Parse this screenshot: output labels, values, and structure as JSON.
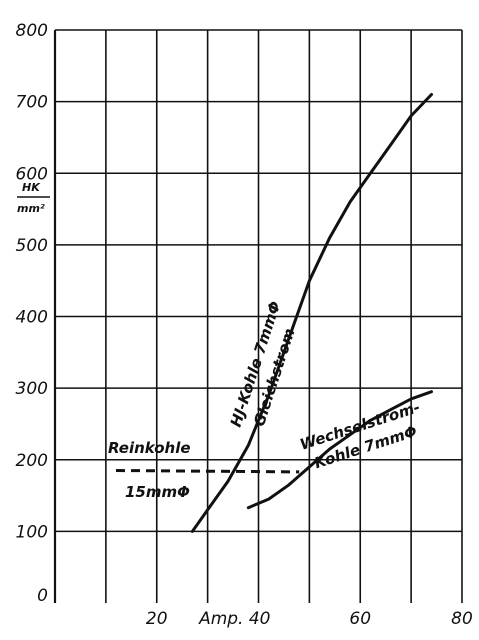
{
  "chart_data": {
    "type": "line",
    "ylabel_numerator": "HK",
    "ylabel_denominator": "mm²",
    "x_tick_labels": [
      "20",
      "Amp. 40",
      "60",
      "80"
    ],
    "y_tick_labels": [
      "0",
      "100",
      "200",
      "300",
      "400",
      "500",
      "600",
      "700",
      "800"
    ],
    "xlim": [
      0,
      80
    ],
    "ylim": [
      0,
      800
    ],
    "grid": true,
    "series": [
      {
        "name": "HJ-Kohle 7mmΦ Gleichstrom",
        "label_line1": "HJ-Kohle 7mmΦ",
        "label_line2": "Gleichstrom",
        "style": "solid",
        "x": [
          27,
          30,
          34,
          38,
          42,
          46,
          50,
          54,
          58,
          62,
          66,
          70,
          74
        ],
        "y": [
          100,
          130,
          170,
          220,
          290,
          370,
          450,
          510,
          560,
          600,
          640,
          680,
          710
        ]
      },
      {
        "name": "Wechselstrom-Kohle 7mmΦ",
        "label_line1": "Wechselstrom-",
        "label_line2": "Kohle 7mmΦ",
        "style": "solid",
        "x": [
          38,
          42,
          46,
          50,
          54,
          58,
          62,
          66,
          70,
          74
        ],
        "y": [
          133,
          145,
          165,
          190,
          215,
          235,
          255,
          270,
          285,
          295
        ]
      },
      {
        "name": "Reinkohle 15mmΦ",
        "label_line1": "Reinkohle",
        "label_line2": "15mmΦ",
        "style": "dashed",
        "x": [
          12,
          48
        ],
        "y": [
          185,
          183
        ]
      }
    ]
  }
}
